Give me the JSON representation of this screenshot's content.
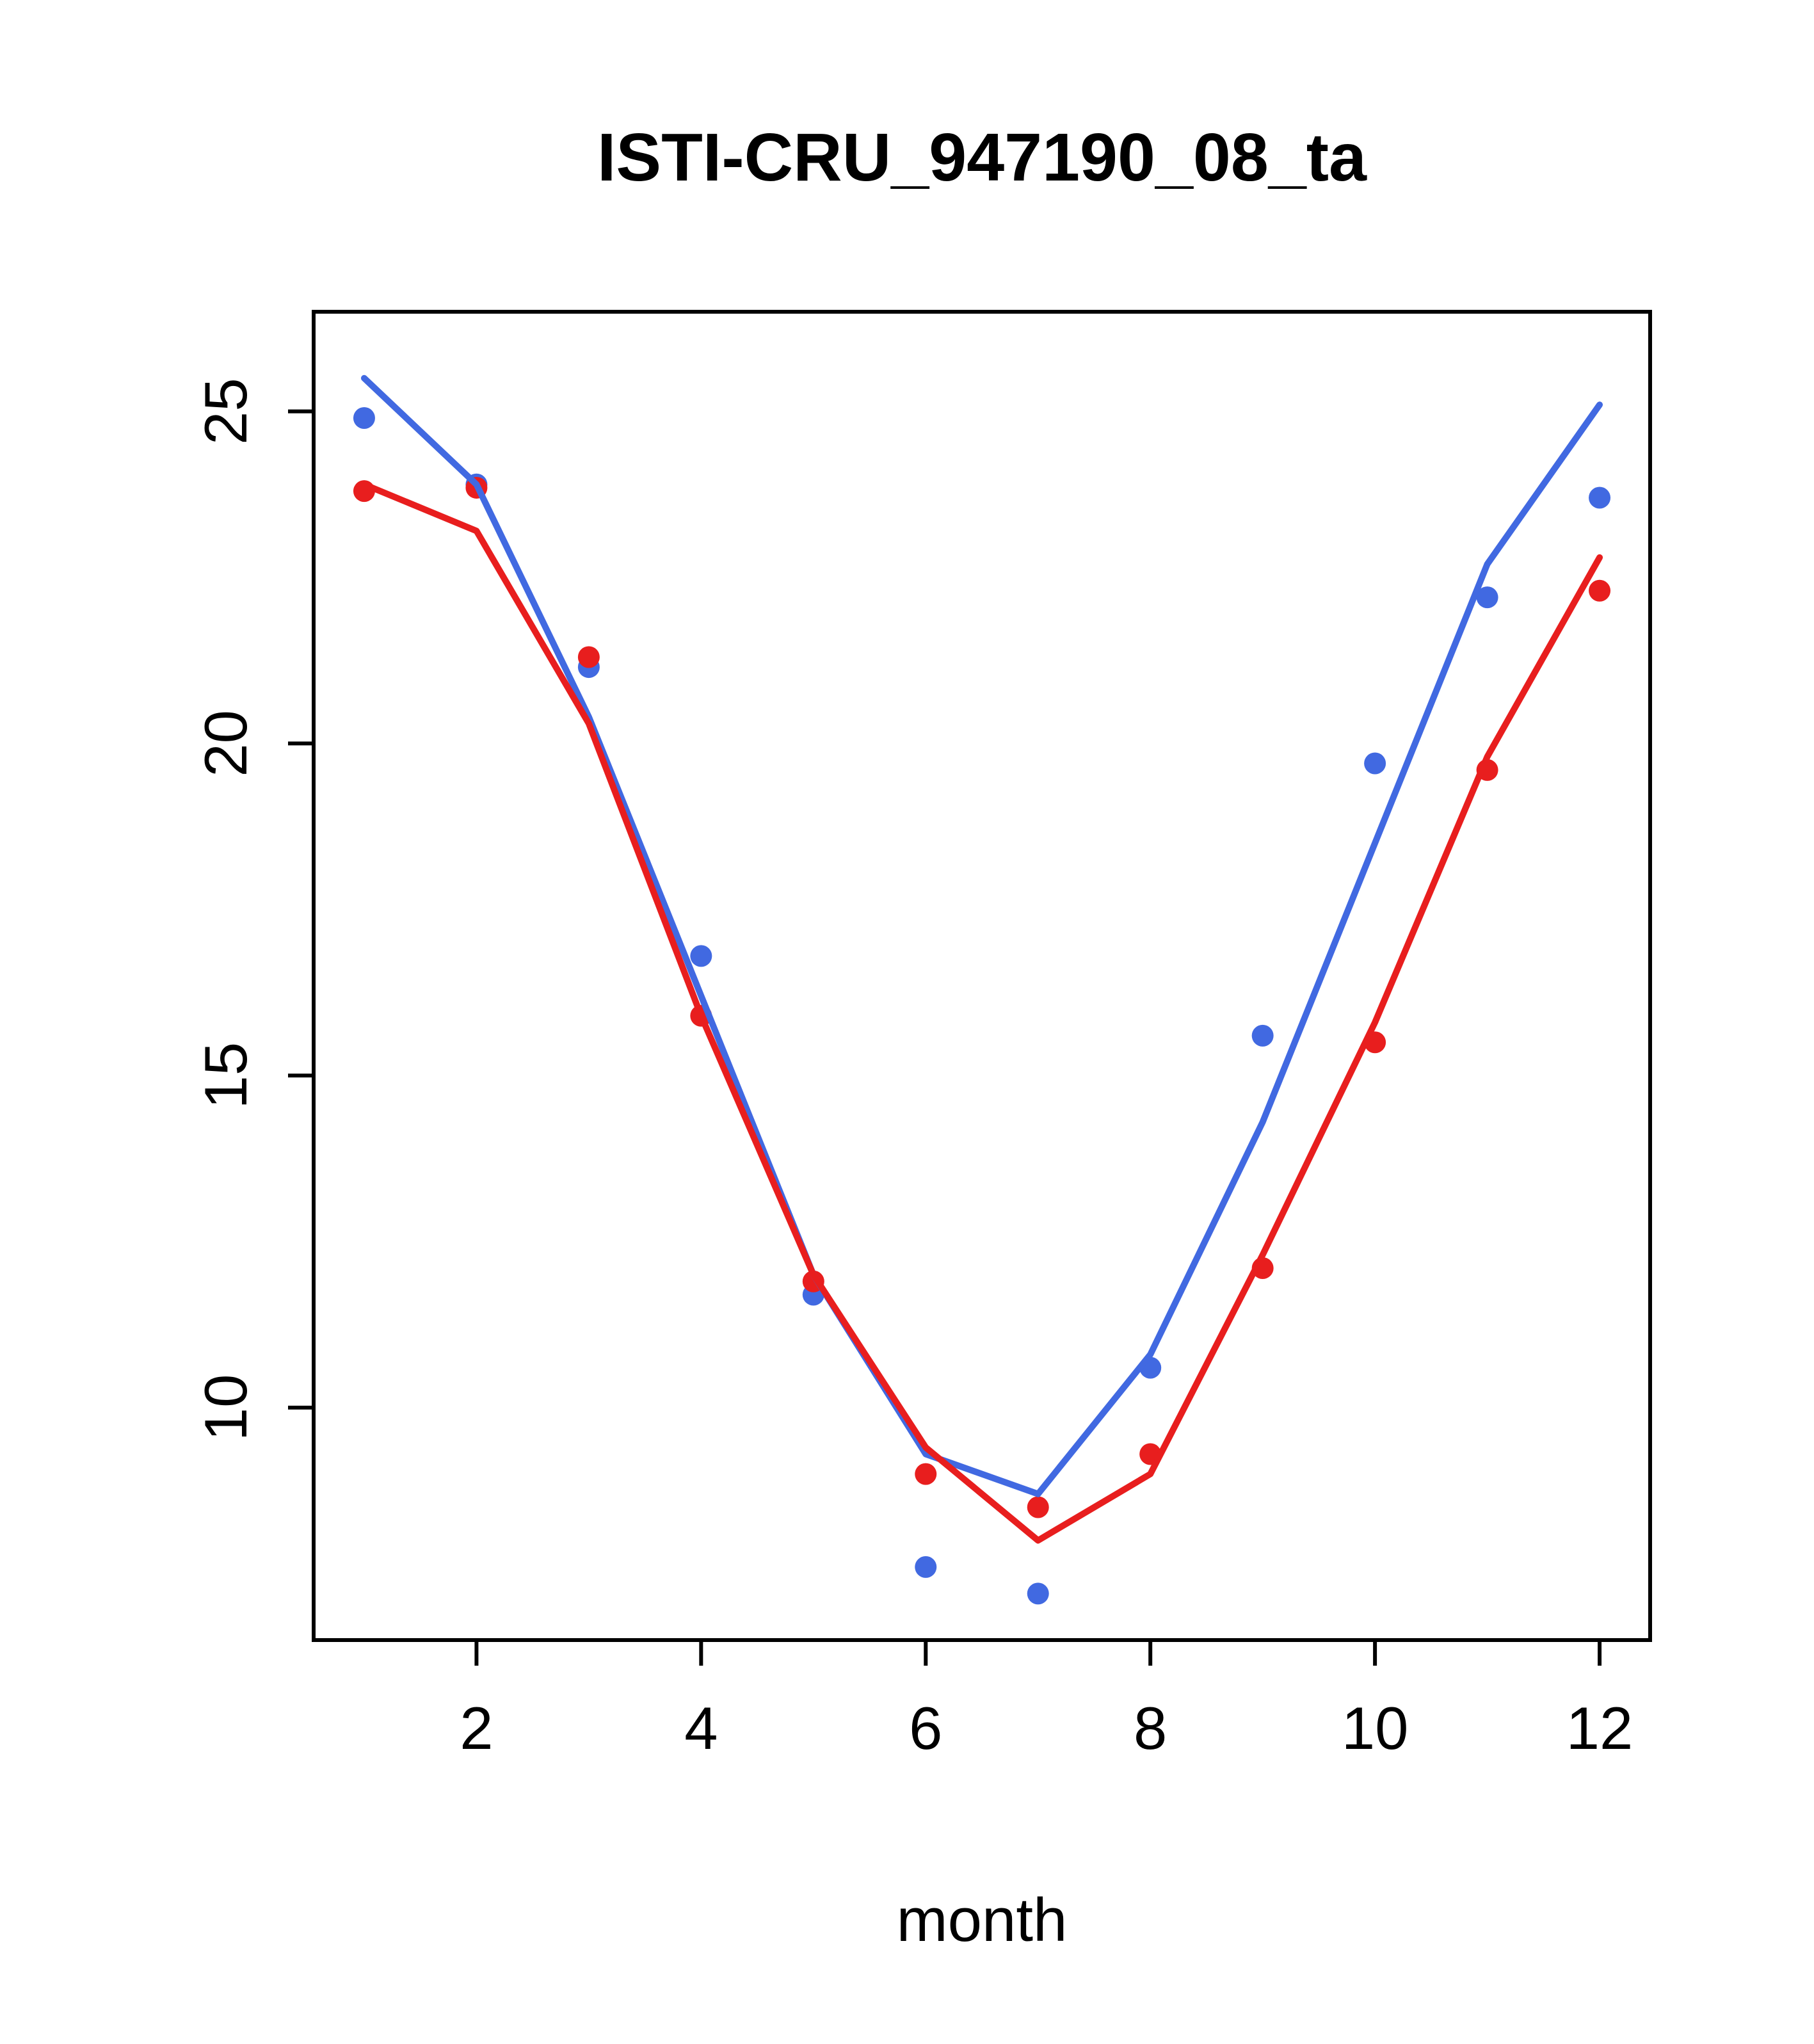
{
  "chart_data": {
    "type": "line",
    "title": "ISTI-CRU_947190_08_ta",
    "xlabel": "month",
    "ylabel": "",
    "x": [
      1,
      2,
      3,
      4,
      5,
      6,
      7,
      8,
      9,
      10,
      11,
      12
    ],
    "xticks": [
      2,
      4,
      6,
      8,
      10,
      12
    ],
    "yticks": [
      10,
      15,
      20,
      25
    ],
    "xlim": [
      0.55,
      12.45
    ],
    "ylim": [
      6.5,
      26.5
    ],
    "grid": false,
    "legend": "none",
    "colors": {
      "station": "#4169e1",
      "reference": "#e81e1e",
      "axis": "#000000",
      "background": "#ffffff"
    },
    "series": [
      {
        "name": "station-points",
        "style": "scatter",
        "color": "#4169e1",
        "values": [
          24.9,
          23.9,
          21.15,
          16.8,
          11.7,
          7.6,
          7.2,
          10.6,
          15.6,
          19.7,
          22.2,
          23.7
        ]
      },
      {
        "name": "reference-points",
        "style": "scatter",
        "color": "#e81e1e",
        "values": [
          23.8,
          23.85,
          21.3,
          15.9,
          11.9,
          9.0,
          8.5,
          9.3,
          12.1,
          15.5,
          19.6,
          22.3
        ]
      },
      {
        "name": "station-line",
        "style": "line",
        "color": "#4169e1",
        "values": [
          25.5,
          23.9,
          20.4,
          16.2,
          12.0,
          9.3,
          8.7,
          10.8,
          14.3,
          18.5,
          22.7,
          25.1
        ]
      },
      {
        "name": "reference-line",
        "style": "line",
        "color": "#e81e1e",
        "values": [
          23.9,
          23.2,
          20.3,
          15.9,
          12.0,
          9.4,
          8.0,
          9.0,
          12.3,
          15.8,
          19.8,
          22.8
        ]
      }
    ]
  }
}
